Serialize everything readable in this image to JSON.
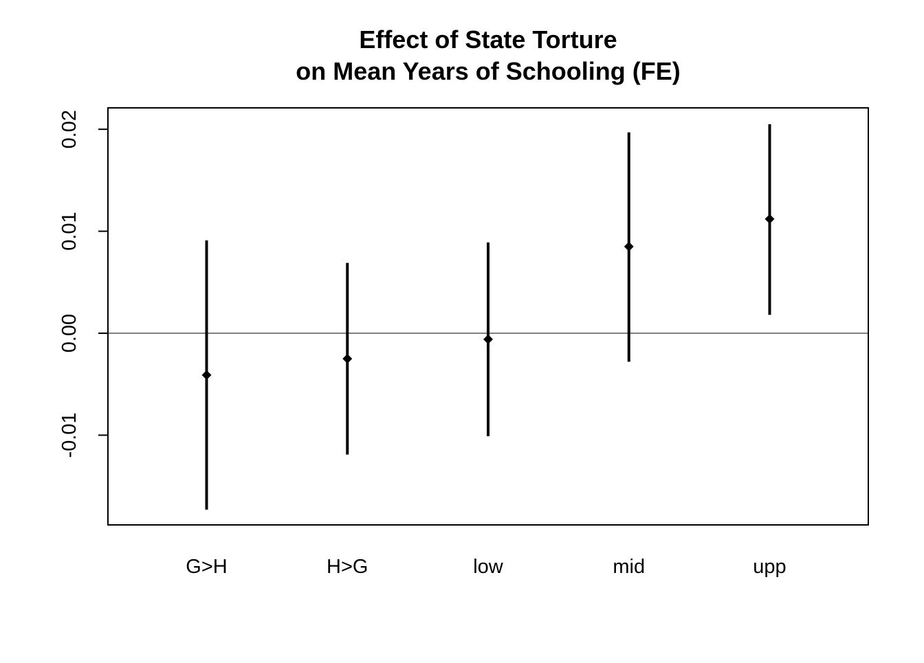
{
  "chart_data": {
    "type": "scatter",
    "title": "Effect of State Torture\non Mean Years of Schooling (FE)",
    "title_lines": [
      "Effect of State Torture",
      "on Mean Years of Schooling (FE)"
    ],
    "xlabel": "",
    "ylabel": "",
    "categories": [
      "G>H",
      "H>G",
      "low",
      "mid",
      "upp"
    ],
    "estimates": [
      -0.0041,
      -0.0025,
      -0.0006,
      0.0085,
      0.0112
    ],
    "ci_lower": [
      -0.0173,
      -0.0119,
      -0.0101,
      -0.0028,
      0.0018
    ],
    "ci_upper": [
      0.0091,
      0.0069,
      0.0089,
      0.0197,
      0.0205
    ],
    "ylim": [
      -0.0188,
      0.0221
    ],
    "yticks": [
      -0.01,
      0.0,
      0.01,
      0.02
    ],
    "ytick_labels": [
      "-0.01",
      "0.00",
      "0.01",
      "0.02"
    ],
    "reference_line": 0,
    "grid": false,
    "marker": "diamond",
    "colors": {
      "ink": "#000000",
      "background": "#ffffff"
    }
  }
}
